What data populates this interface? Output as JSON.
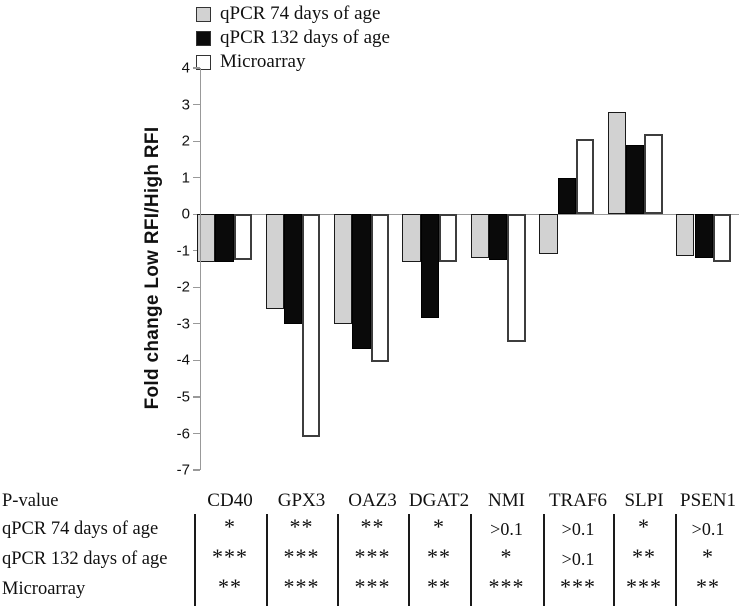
{
  "chart_data": {
    "type": "bar",
    "title": "",
    "xlabel": "",
    "ylabel": "Fold change Low RFI/High RFI",
    "ylim": [
      -7,
      4
    ],
    "yticks": [
      4,
      3,
      2,
      1,
      0,
      -1,
      -2,
      -3,
      -4,
      -5,
      -6,
      -7
    ],
    "grid": false,
    "legend_position": "top-left",
    "categories": [
      "CD40",
      "GPX3",
      "OAZ3",
      "DGAT2",
      "NMI",
      "TRAF6",
      "SLPI",
      "PSEN1"
    ],
    "series": [
      {
        "name": "qPCR 74 days of age",
        "fill": "#d2d2d2",
        "values": [
          -1.3,
          -2.6,
          -3.0,
          -1.3,
          -1.2,
          -1.1,
          2.8,
          -1.15
        ]
      },
      {
        "name": "qPCR 132 days of age",
        "fill": "#0a0a0a",
        "values": [
          -1.3,
          -3.0,
          -3.7,
          -2.85,
          -1.25,
          1.0,
          1.9,
          -1.2
        ]
      },
      {
        "name": "Microarray",
        "fill": "#ffffff",
        "values": [
          -1.25,
          -6.1,
          -4.05,
          -1.3,
          -3.5,
          2.05,
          2.2,
          -1.3
        ]
      }
    ]
  },
  "p_value_table": {
    "corner_label": "P-value",
    "columns": [
      "CD40",
      "GPX3",
      "OAZ3",
      "DGAT2",
      "NMI",
      "TRAF6",
      "SLPI",
      "PSEN1"
    ],
    "rows": [
      {
        "label": "qPCR 74 days of age",
        "values": [
          "*",
          "**",
          "**",
          "*",
          ">0.1",
          ">0.1",
          "*",
          ">0.1"
        ]
      },
      {
        "label": "qPCR 132 days of age",
        "values": [
          "***",
          "***",
          "***",
          "**",
          "*",
          ">0.1",
          "**",
          "*"
        ]
      },
      {
        "label": "Microarray",
        "values": [
          "**",
          "***",
          "***",
          "**",
          "***",
          "***",
          "***",
          "**"
        ]
      }
    ]
  },
  "colors": {
    "axis": "#999999",
    "bar_border": "#1a1a1a",
    "series_gray": "#d2d2d2",
    "series_black": "#0a0a0a",
    "series_white": "#ffffff"
  }
}
